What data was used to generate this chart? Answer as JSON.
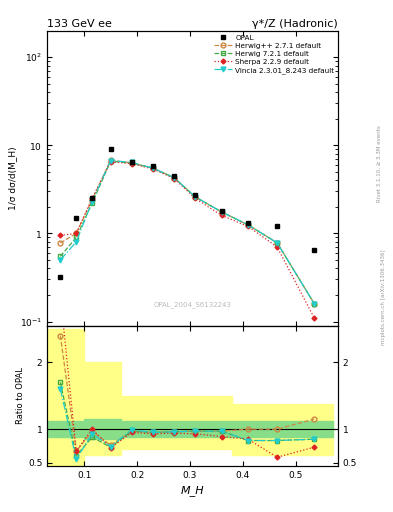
{
  "title": "133 GeV ee",
  "title_right": "γ*/Z (Hadronic)",
  "ylabel_main": "1/σ dσ/d(M_H)",
  "ylabel_ratio": "Ratio to OPAL",
  "xlabel": "M_H",
  "watermark": "OPAL_2004_S6132243",
  "right_label": "Rivet 3.1.10, ≥ 3.3M events",
  "right_label2": "mcplots.cern.ch [arXiv:1306.3436]",
  "opal_x": [
    0.055,
    0.085,
    0.115,
    0.15,
    0.19,
    0.23,
    0.27,
    0.31,
    0.36,
    0.41,
    0.465,
    0.535
  ],
  "opal_y": [
    0.32,
    1.5,
    2.5,
    9.0,
    6.5,
    5.8,
    4.5,
    2.7,
    1.8,
    1.3,
    1.2,
    0.65
  ],
  "herwig_pp_y": [
    0.78,
    1.0,
    2.4,
    6.8,
    6.3,
    5.5,
    4.3,
    2.6,
    1.75,
    1.25,
    0.78,
    0.16
  ],
  "herwig721_y": [
    0.55,
    0.9,
    2.2,
    6.6,
    6.3,
    5.5,
    4.3,
    2.6,
    1.75,
    1.25,
    0.78,
    0.16
  ],
  "sherpa_y": [
    0.95,
    1.0,
    2.5,
    6.5,
    6.2,
    5.4,
    4.2,
    2.5,
    1.6,
    1.2,
    0.7,
    0.11
  ],
  "vincia_y": [
    0.5,
    0.8,
    2.3,
    6.7,
    6.4,
    5.5,
    4.3,
    2.6,
    1.75,
    1.25,
    0.78,
    0.16
  ],
  "ratio_herwig_pp": [
    2.4,
    0.67,
    0.97,
    0.76,
    0.97,
    0.95,
    0.96,
    0.97,
    0.97,
    1.0,
    1.0,
    1.15
  ],
  "ratio_herwig721": [
    1.7,
    0.6,
    0.88,
    0.73,
    0.97,
    0.95,
    0.96,
    0.97,
    0.97,
    0.83,
    0.83,
    0.85
  ],
  "ratio_sherpa": [
    3.0,
    0.67,
    1.0,
    0.72,
    0.95,
    0.93,
    0.94,
    0.93,
    0.89,
    0.85,
    0.58,
    0.73
  ],
  "ratio_vincia": [
    1.6,
    0.55,
    0.93,
    0.74,
    0.99,
    0.95,
    0.96,
    0.97,
    0.97,
    0.83,
    0.83,
    0.85
  ],
  "yellow_edges": [
    0.03,
    0.07,
    0.1,
    0.17,
    0.24,
    0.38,
    0.57
  ],
  "yellow_lo": [
    0.45,
    0.45,
    0.62,
    0.7,
    0.7,
    0.62,
    0.62
  ],
  "yellow_hi": [
    2.5,
    2.5,
    2.0,
    1.5,
    1.5,
    1.38,
    1.38
  ],
  "green_edges": [
    0.03,
    0.07,
    0.1,
    0.17,
    0.24,
    0.57
  ],
  "green_lo": [
    0.88,
    0.88,
    0.85,
    0.88,
    0.88,
    0.88
  ],
  "green_hi": [
    1.12,
    1.12,
    1.15,
    1.12,
    1.12,
    1.12
  ],
  "color_herwig_pp": "#cc8844",
  "color_herwig721": "#44aa44",
  "color_sherpa": "#dd2222",
  "color_vincia": "#22cccc",
  "color_opal": "#000000",
  "xlim": [
    0.03,
    0.58
  ],
  "ylim_main": [
    0.09,
    200
  ],
  "ylim_ratio": [
    0.45,
    2.55
  ]
}
